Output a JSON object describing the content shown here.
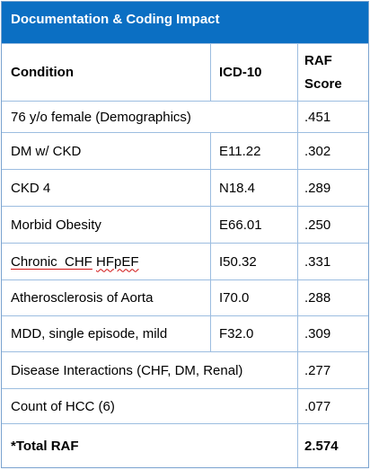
{
  "title": "Documentation & Coding Impact",
  "headers": {
    "condition": "Condition",
    "icd": "ICD-10",
    "raf_line1": "RAF",
    "raf_line2": "Score"
  },
  "rows": [
    {
      "condition": "76 y/o female (Demographics)",
      "icd": "",
      "raf": ".451"
    },
    {
      "condition": "DM w/ CKD",
      "icd": "E11.22",
      "raf": ".302"
    },
    {
      "condition": "CKD 4",
      "icd": "N18.4",
      "raf": ".289"
    },
    {
      "condition": "Morbid Obesity",
      "icd": "E66.01",
      "raf": ".250"
    },
    {
      "condition_part1": "Chronic  CHF",
      "condition_part2": "HFpEF",
      "icd": "I50.32",
      "raf": ".331"
    },
    {
      "condition": "Atherosclerosis of Aorta",
      "icd": "I70.0",
      "raf": ".288"
    },
    {
      "condition": "MDD, single episode, mild",
      "icd": "F32.0",
      "raf": ".309"
    },
    {
      "condition": "Disease Interactions (CHF, DM, Renal)",
      "icd": "",
      "raf": ".277"
    },
    {
      "condition": "Count of HCC (6)",
      "icd": "",
      "raf": ".077"
    }
  ],
  "total": {
    "label": "*Total RAF",
    "raf": "2.574"
  }
}
